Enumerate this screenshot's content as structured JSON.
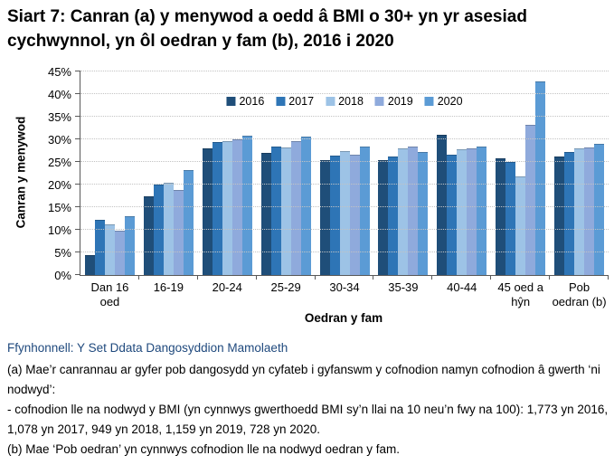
{
  "title": "Siart 7: Canran (a) y menywod a oedd â BMI o 30+ yn yr asesiad cychwynnol, yn ôl oedran y fam (b), 2016 i 2020",
  "chart_data": {
    "type": "bar",
    "title": "Siart 7: Canran (a) y menywod a oedd â BMI o 30+ yn yr asesiad cychwynnol, yn ôl oedran y fam (b), 2016 i 2020",
    "xlabel": "Oedran y fam",
    "ylabel": "Canran y menywod",
    "ylim": [
      0,
      45
    ],
    "ytick_step": 5,
    "ytick_suffix": "%",
    "grid": true,
    "legend_position": "top-center",
    "categories": [
      "Dan 16 oed",
      "16-19",
      "20-24",
      "25-29",
      "30-34",
      "35-39",
      "40-44",
      "45 oed a hŷn",
      "Pob oedran (b)"
    ],
    "series": [
      {
        "name": "2016",
        "color": "#1F4E79",
        "values": [
          4.5,
          17.5,
          28.0,
          27.0,
          25.5,
          25.4,
          31.1,
          25.8,
          26.3
        ]
      },
      {
        "name": "2017",
        "color": "#2E75B6",
        "values": [
          12.2,
          20.0,
          29.4,
          28.5,
          26.4,
          26.3,
          26.7,
          25.0,
          27.3
        ]
      },
      {
        "name": "2018",
        "color": "#9DC3E6",
        "values": [
          11.2,
          20.5,
          29.6,
          28.2,
          27.4,
          28.1,
          27.9,
          21.8,
          28.1
        ]
      },
      {
        "name": "2019",
        "color": "#8FAADC",
        "values": [
          9.8,
          18.9,
          30.1,
          29.6,
          26.6,
          28.4,
          28.1,
          33.3,
          28.3
        ]
      },
      {
        "name": "2020",
        "color": "#5B9BD5",
        "values": [
          13.0,
          23.2,
          30.8,
          30.6,
          28.5,
          27.3,
          28.5,
          42.8,
          29.1
        ]
      }
    ]
  },
  "footer": {
    "source": "Ffynhonnell: Y Set Ddata Dangosyddion Mamolaeth",
    "note_a": "(a) Mae’r canrannau ar gyfer pob dangosydd yn cyfateb i gyfanswm y cofnodion namyn cofnodion â gwerth ‘ni nodwyd’:",
    "note_a_detail": " - cofnodion lle na nodwyd y BMI (yn cynnwys gwerthoedd BMI sy’n llai na 10 neu’n fwy na 100): 1,773 yn 2016, 1,078 yn 2017, 949 yn 2018, 1,159 yn 2019, 728 yn 2020.",
    "note_b": "(b) Mae ‘Pob oedran’ yn cynnwys cofnodion lle na nodwyd oedran y fam."
  },
  "colors": {
    "axis": "#595959",
    "gridline": "#c3c3c3",
    "source_text": "#1F497D"
  }
}
